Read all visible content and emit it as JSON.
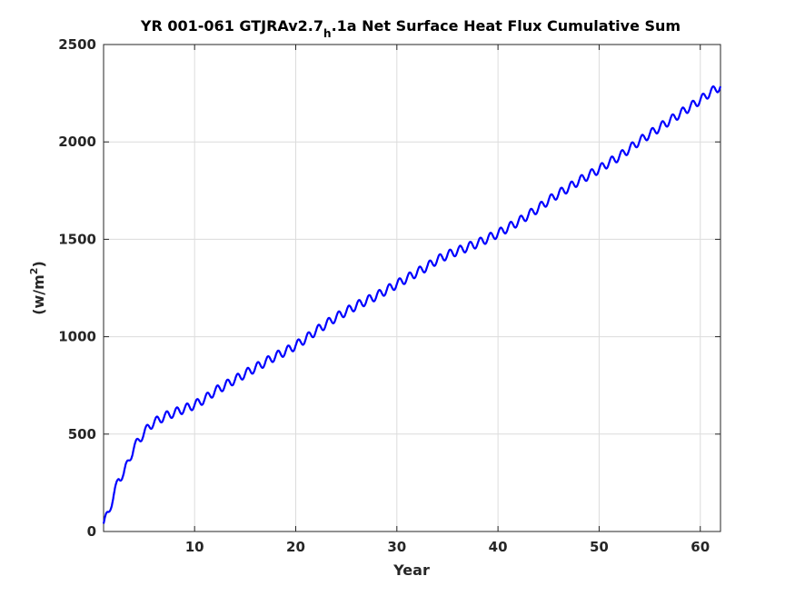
{
  "chart_data": {
    "type": "line",
    "title_main": "YR 001-061 GTJRAv2.7",
    "title_subscript": "h",
    "title_rest": ".1a Net Surface Heat Flux  Cumulative Sum",
    "xlabel": "Year",
    "ylabel_prefix": "(w/m",
    "ylabel_superscript": "2",
    "ylabel_suffix": ")",
    "xlim": [
      1,
      62
    ],
    "ylim": [
      0,
      2500
    ],
    "xticks": [
      10,
      20,
      30,
      40,
      50,
      60
    ],
    "yticks": [
      0,
      500,
      1000,
      1500,
      2000,
      2500
    ],
    "grid": true,
    "series_color": "#0000ff",
    "series": [
      {
        "x": [
          1,
          1.5,
          2,
          2.5,
          3,
          3.5,
          4,
          4.5,
          5,
          5.5,
          6,
          7,
          8,
          9,
          10,
          11,
          12,
          13,
          14,
          15,
          16,
          17,
          18,
          19,
          20,
          21,
          22,
          23,
          24,
          25,
          26,
          27,
          28,
          29,
          30,
          31,
          32,
          33,
          34,
          35,
          36,
          37,
          38,
          39,
          40,
          41,
          42,
          43,
          44,
          45,
          46,
          47,
          48,
          49,
          50,
          51,
          52,
          53,
          54,
          55,
          56,
          57,
          58,
          59,
          60,
          61,
          62
        ],
        "y": [
          40,
          100,
          185,
          270,
          300,
          365,
          430,
          470,
          505,
          540,
          560,
          590,
          610,
          630,
          650,
          680,
          720,
          750,
          780,
          810,
          840,
          870,
          900,
          925,
          955,
          990,
          1030,
          1065,
          1100,
          1130,
          1160,
          1185,
          1210,
          1240,
          1270,
          1300,
          1330,
          1360,
          1395,
          1420,
          1440,
          1460,
          1480,
          1505,
          1530,
          1560,
          1590,
          1625,
          1660,
          1700,
          1735,
          1765,
          1800,
          1830,
          1860,
          1895,
          1925,
          1965,
          2005,
          2040,
          2075,
          2110,
          2145,
          2180,
          2215,
          2255,
          2285
        ]
      }
    ]
  }
}
